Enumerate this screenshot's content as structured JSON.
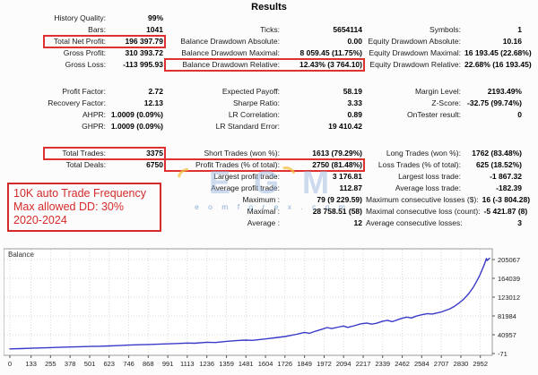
{
  "title": "Results",
  "stats": {
    "col1": {
      "rows": [
        {
          "label": "History Quality:",
          "value": "99%"
        },
        {
          "label": "Bars:",
          "value": "1041"
        },
        {
          "label": "Total Net Profit:",
          "value": "196 397.79",
          "boxed": true
        },
        {
          "label": "Gross Profit:",
          "value": "310 393.72"
        },
        {
          "label": "Gross Loss:",
          "value": "-113 995.93"
        },
        {
          "spacer": true
        },
        {
          "label": "Profit Factor:",
          "value": "2.72"
        },
        {
          "label": "Recovery Factor:",
          "value": "12.13"
        },
        {
          "label": "AHPR:",
          "value": "1.0009 (0.09%)"
        },
        {
          "label": "GHPR:",
          "value": "1.0009 (0.09%)"
        },
        {
          "spacer": true
        },
        {
          "label": "Total Trades:",
          "value": "3375",
          "boxed": true
        },
        {
          "label": "Total Deals:",
          "value": "6750"
        },
        null,
        null,
        null,
        null,
        null
      ]
    },
    "col2": {
      "rows": [
        null,
        {
          "label": "Ticks:",
          "value": "5654114"
        },
        {
          "label": "Balance Drawdown Absolute:",
          "value": "0.00"
        },
        {
          "label": "Balance Drawdown Maximal:",
          "value": "8 059.45 (11.75%)"
        },
        {
          "label": "Balance Drawdown Relative:",
          "value": "12.43% (3 764.10)",
          "boxed": true
        },
        {
          "spacer": true
        },
        {
          "label": "Expected Payoff:",
          "value": "58.19"
        },
        {
          "label": "Sharpe Ratio:",
          "value": "3.33"
        },
        {
          "label": "LR Correlation:",
          "value": "0.89"
        },
        {
          "label": "LR Standard Error:",
          "value": "19 410.42"
        },
        {
          "spacer": true
        },
        {
          "label": "Short Trades (won %):",
          "value": "1613 (79.29%)"
        },
        {
          "label": "Profit Trades (% of total):",
          "value": "2750 (81.48%)",
          "boxed": true
        },
        {
          "label": "Largest profit trade:",
          "value": "3 176.81"
        },
        {
          "label": "Average profit trade:",
          "value": "112.87"
        },
        {
          "label": "Maximum :",
          "value": "79 (9 229.59)"
        },
        {
          "label": "Maximal :",
          "value": "28 758.51 (58)"
        },
        {
          "label": "Average :",
          "value": "12"
        }
      ]
    },
    "col3": {
      "rows": [
        null,
        {
          "label": "Symbols:",
          "value": "1"
        },
        {
          "label": "Equity Drawdown Absolute:",
          "value": "10.16"
        },
        {
          "label": "Equity Drawdown Maximal:",
          "value": "16 193.45 (22.68%)"
        },
        {
          "label": "Equity Drawdown Relative:",
          "value": "22.68% (16 193.45)"
        },
        {
          "spacer": true
        },
        {
          "label": "Margin Level:",
          "value": "2193.49%"
        },
        {
          "label": "Z-Score:",
          "value": "-32.75 (99.74%)"
        },
        {
          "label": "OnTester result:",
          "value": "0"
        },
        null,
        {
          "spacer": true
        },
        {
          "label": "Long Trades (won %):",
          "value": "1762 (83.48%)"
        },
        {
          "label": "Loss Trades (% of total):",
          "value": "625 (18.52%)"
        },
        {
          "label": "Largest loss trade:",
          "value": "-1 867.32"
        },
        {
          "label": "Average loss trade:",
          "value": "-182.39"
        },
        {
          "label": "Maximum consecutive losses ($):",
          "value": "16 (-3 804.28)"
        },
        {
          "label": "Maximal consecutive loss (count):",
          "value": "-5 421.87 (8)"
        },
        {
          "label": "Average consecutive losses:",
          "value": "3"
        }
      ]
    }
  },
  "annotation": {
    "lines": [
      "10K auto Trade Frequency",
      "Max allowed DD: 30%",
      "2020-2024"
    ],
    "color": "#d42a2a"
  },
  "watermark": {
    "logo_text": "EGM",
    "text": "e o m f o r e x . c o m"
  },
  "chart_data": {
    "type": "line",
    "title": "Balance",
    "grid": "dotted",
    "y_axis_side": "right",
    "x_range": [
      0,
      3010
    ],
    "x_ticks": [
      0,
      133,
      255,
      378,
      501,
      623,
      746,
      868,
      991,
      1113,
      1236,
      1359,
      1481,
      1604,
      1726,
      1849,
      1972,
      2094,
      2217,
      2339,
      2462,
      2584,
      2707,
      2830,
      2952
    ],
    "y_ticks": [
      -71,
      40957,
      81984,
      123012,
      164039,
      205067
    ],
    "series": [
      {
        "name": "Balance",
        "color": "#3a3ac8",
        "x": [
          0,
          70,
          133,
          200,
          255,
          310,
          378,
          440,
          501,
          560,
          623,
          690,
          746,
          810,
          868,
          930,
          991,
          1050,
          1113,
          1160,
          1236,
          1290,
          1359,
          1420,
          1481,
          1520,
          1604,
          1660,
          1726,
          1765,
          1800,
          1830,
          1849,
          1880,
          1920,
          1960,
          1990,
          2020,
          2060,
          2094,
          2120,
          2160,
          2200,
          2240,
          2270,
          2300,
          2339,
          2370,
          2400,
          2440,
          2462,
          2490,
          2520,
          2550,
          2584,
          2620,
          2650,
          2680,
          2707,
          2730,
          2760,
          2790,
          2820,
          2850,
          2880,
          2905,
          2925,
          2945,
          2960,
          2972,
          2982,
          2990,
          2995,
          3002,
          3010
        ],
        "y": [
          10000,
          10700,
          11500,
          12300,
          12800,
          13400,
          14100,
          14800,
          15300,
          15800,
          16500,
          17400,
          18200,
          19000,
          19600,
          20200,
          21000,
          21900,
          22800,
          22300,
          24600,
          24000,
          26500,
          28100,
          29200,
          28600,
          31800,
          34200,
          37000,
          39500,
          42000,
          44500,
          46000,
          44000,
          49000,
          53000,
          56500,
          54500,
          57500,
          60000,
          57000,
          60500,
          64500,
          66500,
          64000,
          66000,
          70500,
          72500,
          69500,
          74500,
          77000,
          79500,
          77500,
          81500,
          84500,
          87000,
          86000,
          88500,
          90500,
          93500,
          97500,
          103000,
          110500,
          119500,
          131000,
          143000,
          155000,
          168000,
          180000,
          190000,
          199000,
          207500,
          203000,
          205500,
          208000
        ]
      }
    ]
  }
}
